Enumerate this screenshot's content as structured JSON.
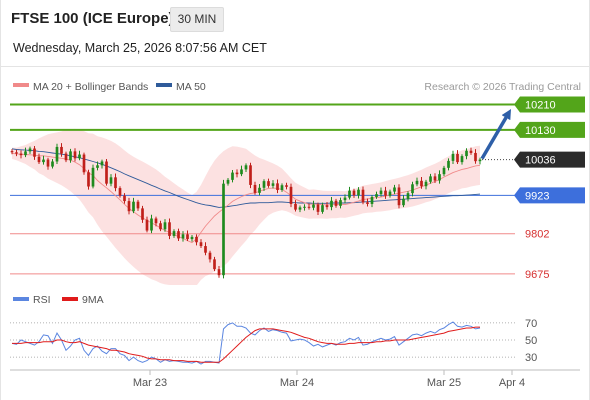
{
  "header": {
    "title": "FTSE 100 (ICE Europe)",
    "timeframe": "30 MIN",
    "datetime": "Wednesday, March 25, 2026 8:07:56 AM CET"
  },
  "legend": {
    "ma20": "MA 20 + Bollinger Bands",
    "ma50": "MA 50",
    "credit": "Research © 2026 Trading Central"
  },
  "rsi_legend": {
    "rsi": "RSI",
    "ma9": "9MA"
  },
  "colors": {
    "green": "#53a51a",
    "blue_line": "#3d6fdc",
    "red_line": "#f08a8a",
    "ma20": "#f08a8a",
    "ma50": "#2f5b9a",
    "candle_up": "#1e8a1e",
    "candle_down": "#c0201a",
    "band_fill": "#fcdcdc",
    "current": "#2b2b2b",
    "arrow": "#2e5fa8"
  },
  "chart_data": {
    "type": "candlestick",
    "title": "FTSE 100 (ICE Europe)",
    "timeframe": "30 MIN",
    "ylim": [
      9640,
      10240
    ],
    "x_ticks": [
      "Mar 23",
      "Mar 24",
      "Mar 25",
      "Apr 4"
    ],
    "current_price": "10036",
    "levels": [
      {
        "value": 10210,
        "label": "10210",
        "kind": "resistance",
        "color": "#53a51a"
      },
      {
        "value": 10130,
        "label": "10130",
        "kind": "resistance",
        "color": "#53a51a"
      },
      {
        "value": 9923,
        "label": "9923",
        "kind": "support-pivot",
        "color": "#3d6fdc"
      },
      {
        "value": 9802,
        "label": "9802",
        "kind": "support",
        "color": "#f08a8a"
      },
      {
        "value": 9675,
        "label": "9675",
        "kind": "support",
        "color": "#f08a8a"
      }
    ],
    "closes": [
      10059,
      10055,
      10050,
      10062,
      10071,
      10045,
      10028,
      10036,
      10014,
      10030,
      10076,
      10055,
      10034,
      10062,
      10040,
      10052,
      9996,
      9951,
      10010,
      10018,
      10030,
      9960,
      9980,
      9946,
      9922,
      9905,
      9873,
      9903,
      9882,
      9846,
      9812,
      9850,
      9835,
      9816,
      9838,
      9795,
      9810,
      9787,
      9800,
      9785,
      9792,
      9775,
      9763,
      9742,
      9721,
      9690,
      9671,
      9960,
      9972,
      9995,
      9990,
      10005,
      10018,
      9956,
      9931,
      9947,
      9968,
      9953,
      9961,
      9940,
      9955,
      9950,
      9896,
      9878,
      9885,
      9887,
      9884,
      9894,
      9871,
      9892,
      9886,
      9906,
      9890,
      9908,
      9916,
      9938,
      9923,
      9941,
      9901,
      9896,
      9918,
      9927,
      9938,
      9922,
      9935,
      9948,
      9892,
      9912,
      9930,
      9958,
      9969,
      9952,
      9966,
      9983,
      9970,
      9990,
      10010,
      10032,
      10054,
      10028,
      10047,
      10064,
      10057,
      10031,
      10036
    ],
    "ma20_values": [
      10056,
      10054,
      10053,
      10052,
      10051,
      10050,
      10048,
      10048,
      10046,
      10044,
      10042,
      10040,
      10038,
      10034,
      10028,
      10020,
      10008,
      9994,
      9986,
      9970,
      9958,
      9947,
      9935,
      9922,
      9909,
      9895,
      9882,
      9871,
      9861,
      9852,
      9844,
      9836,
      9829,
      9820,
      9812,
      9806,
      9799,
      9793,
      9787,
      9780,
      9774,
      9786,
      9806,
      9826,
      9842,
      9858,
      9870,
      9881,
      9892,
      9904,
      9912,
      9919,
      9925,
      9929,
      9931,
      9936,
      9941,
      9945,
      9946,
      9945,
      9942,
      9933,
      9922,
      9911,
      9905,
      9900,
      9895,
      9896,
      9895,
      9894,
      9893,
      9894,
      9894,
      9895,
      9894,
      9897,
      9901,
      9905,
      9910,
      9912,
      9914,
      9916,
      9918,
      9921,
      9924,
      9927,
      9930,
      9933,
      9936,
      9940,
      9945,
      9950,
      9956,
      9961,
      9967,
      9973,
      9981,
      9988,
      9995,
      10000,
      10005,
      10008,
      10012,
      10016,
      10018
    ],
    "ma50_values": [
      10070,
      10068,
      10067,
      10066,
      10065,
      10064,
      10062,
      10061,
      10059,
      10057,
      10055,
      10053,
      10051,
      10048,
      10045,
      10042,
      10038,
      10034,
      10030,
      10026,
      10021,
      10016,
      10010,
      10004,
      9998,
      9991,
      9985,
      9979,
      9973,
      9967,
      9961,
      9955,
      9949,
      9943,
      9937,
      9932,
      9926,
      9920,
      9915,
      9910,
      9905,
      9900,
      9896,
      9893,
      9891,
      9888,
      9885,
      9886,
      9888,
      9890,
      9892,
      9895,
      9897,
      9899,
      9899,
      9900,
      9900,
      9900,
      9901,
      9902,
      9902,
      9901,
      9900,
      9900,
      9899,
      9899,
      9899,
      9898,
      9898,
      9898,
      9898,
      9899,
      9899,
      9899,
      9899,
      9900,
      9900,
      9901,
      9902,
      9903,
      9904,
      9905,
      9906,
      9907,
      9908,
      9909,
      9910,
      9911,
      9912,
      9913,
      9914,
      9915,
      9916,
      9917,
      9918,
      9919,
      9920,
      9921,
      9922,
      9922,
      9923,
      9924,
      9925,
      9926,
      9927
    ],
    "bollinger_width": [
      18,
      20,
      25,
      30,
      38,
      45,
      55,
      62,
      70,
      75,
      80,
      85,
      92,
      98,
      105,
      110,
      118,
      125,
      132,
      140,
      148,
      154,
      160,
      165,
      168,
      170,
      172,
      174,
      176,
      178,
      178,
      178,
      176,
      174,
      170,
      166,
      162,
      158,
      155,
      152,
      150,
      148,
      150,
      158,
      168,
      175,
      180,
      182,
      180,
      174,
      165,
      155,
      145,
      130,
      118,
      105,
      95,
      85,
      78,
      72,
      66,
      60,
      55,
      52,
      50,
      48,
      46,
      46,
      45,
      44,
      44,
      43,
      43,
      42,
      42,
      42,
      42,
      43,
      44,
      44,
      45,
      45,
      46,
      47,
      48,
      48,
      49,
      50,
      51,
      52,
      53,
      54,
      55,
      56,
      56,
      57,
      58,
      58,
      59,
      60,
      60,
      61,
      61,
      62,
      62
    ],
    "projection": {
      "from": "10036",
      "to": "10210"
    },
    "rsi": {
      "ylim": [
        15,
        85
      ],
      "levels": [
        70,
        50,
        30
      ],
      "rsi_values": [
        46,
        45,
        50,
        48,
        46,
        44,
        48,
        56,
        55,
        46,
        58,
        50,
        38,
        43,
        50,
        52,
        38,
        32,
        40,
        43,
        37,
        34,
        40,
        40,
        34,
        32,
        26,
        30,
        26,
        24,
        26,
        30,
        28,
        24,
        27,
        25,
        26,
        25,
        24,
        24,
        23,
        25,
        22,
        25,
        25,
        24,
        23,
        63,
        68,
        70,
        66,
        66,
        64,
        58,
        56,
        61,
        64,
        60,
        62,
        61,
        59,
        58,
        49,
        50,
        51,
        50,
        47,
        43,
        45,
        42,
        44,
        46,
        44,
        47,
        48,
        52,
        50,
        53,
        44,
        45,
        48,
        50,
        52,
        50,
        51,
        54,
        44,
        48,
        52,
        56,
        57,
        55,
        58,
        60,
        58,
        62,
        64,
        68,
        71,
        66,
        65,
        67,
        66,
        63,
        64
      ],
      "ma9_values": [
        46,
        46,
        46,
        47,
        47,
        47,
        47,
        48,
        48,
        48,
        50,
        50,
        48,
        47,
        47,
        48,
        46,
        44,
        43,
        42,
        41,
        40,
        38,
        38,
        37,
        36,
        34,
        33,
        32,
        31,
        29,
        28,
        28,
        27,
        27,
        27,
        26,
        26,
        26,
        25,
        25,
        25,
        24,
        24,
        24,
        24,
        24,
        28,
        33,
        38,
        43,
        48,
        53,
        57,
        61,
        63,
        63,
        63,
        63,
        62,
        61,
        60,
        59,
        57,
        55,
        53,
        52,
        50,
        48,
        47,
        46,
        46,
        45,
        45,
        45,
        46,
        46,
        47,
        47,
        47,
        47,
        48,
        48,
        49,
        49,
        50,
        50,
        50,
        50,
        51,
        52,
        53,
        54,
        55,
        56,
        57,
        58,
        60,
        61,
        62,
        63,
        64,
        64,
        65,
        65
      ]
    }
  }
}
